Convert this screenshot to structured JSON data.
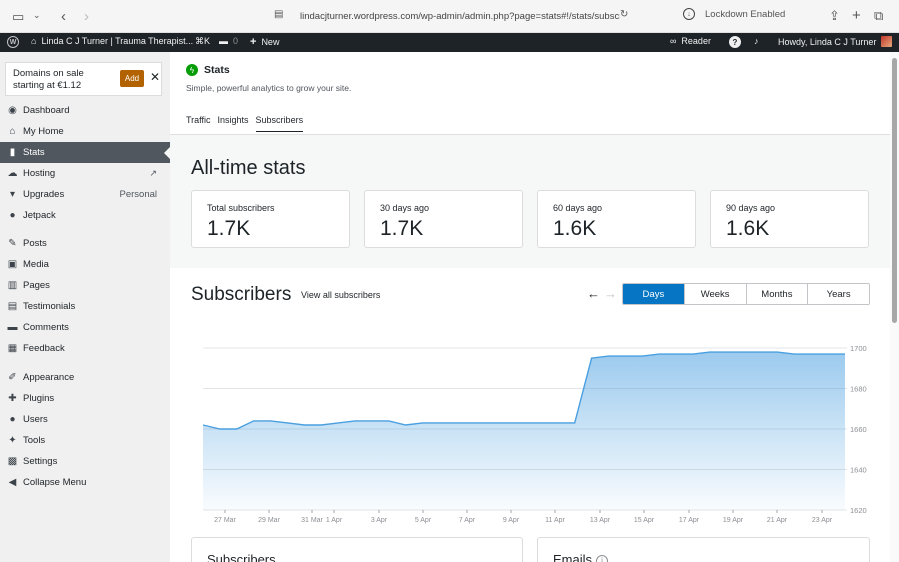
{
  "browser": {
    "url": "lindacjturner.wordpress.com/wp-admin/admin.php?page=stats#!/stats/subscribers",
    "lockdown_label": "Lockdown Enabled"
  },
  "adminbar": {
    "site_name": "Linda C J Turner | Trauma Therapist...",
    "shortcut": "⌘K",
    "comments_count": "0",
    "new_label": "New",
    "reader_label": "Reader",
    "howdy": "Howdy, Linda C J Turner"
  },
  "sidebar": {
    "promo": {
      "text": "Domains on sale starting at €1.12",
      "add_label": "Add"
    },
    "items": [
      {
        "label": "Dashboard",
        "icon": "dashboard-icon"
      },
      {
        "label": "My Home",
        "icon": "home-icon"
      },
      {
        "label": "Stats",
        "icon": "stats-icon"
      },
      {
        "label": "Hosting",
        "icon": "cloud-icon"
      },
      {
        "label": "Upgrades",
        "icon": "cart-icon",
        "badge": "Personal"
      },
      {
        "label": "Jetpack",
        "icon": "jetpack-icon"
      },
      {
        "label": "Posts",
        "icon": "pin-icon"
      },
      {
        "label": "Media",
        "icon": "media-icon"
      },
      {
        "label": "Pages",
        "icon": "pages-icon"
      },
      {
        "label": "Testimonials",
        "icon": "testimonial-icon"
      },
      {
        "label": "Comments",
        "icon": "comment-icon"
      },
      {
        "label": "Feedback",
        "icon": "feedback-icon"
      },
      {
        "label": "Appearance",
        "icon": "brush-icon"
      },
      {
        "label": "Plugins",
        "icon": "plugin-icon"
      },
      {
        "label": "Users",
        "icon": "user-icon"
      },
      {
        "label": "Tools",
        "icon": "wrench-icon"
      },
      {
        "label": "Settings",
        "icon": "settings-icon"
      },
      {
        "label": "Collapse Menu",
        "icon": "collapse-icon"
      }
    ]
  },
  "header": {
    "title": "Stats",
    "subtitle": "Simple, powerful analytics to grow your site.",
    "tabs": [
      "Traffic",
      "Insights",
      "Subscribers"
    ]
  },
  "alltime": {
    "title": "All-time stats",
    "cards": [
      {
        "label": "Total subscribers",
        "value": "1.7K"
      },
      {
        "label": "30 days ago",
        "value": "1.7K"
      },
      {
        "label": "60 days ago",
        "value": "1.6K"
      },
      {
        "label": "90 days ago",
        "value": "1.6K"
      }
    ]
  },
  "subscribers_panel": {
    "title": "Subscribers",
    "view_all": "View all subscribers",
    "periods": [
      "Days",
      "Weeks",
      "Months",
      "Years"
    ],
    "selected_period": "Days"
  },
  "chart_data": {
    "type": "area",
    "x_ticks": [
      "27 Mar",
      "29 Mar",
      "31 Mar",
      "1 Apr",
      "3 Apr",
      "5 Apr",
      "7 Apr",
      "9 Apr",
      "11 Apr",
      "13 Apr",
      "15 Apr",
      "17 Apr",
      "19 Apr",
      "21 Apr",
      "23 Apr"
    ],
    "y_ticks": [
      1620,
      1640,
      1660,
      1680,
      1700
    ],
    "ylim": [
      1620,
      1700
    ],
    "values": [
      1662,
      1660,
      1660,
      1664,
      1664,
      1663,
      1662,
      1662,
      1663,
      1664,
      1664,
      1664,
      1662,
      1663,
      1663,
      1663,
      1663,
      1663,
      1663,
      1663,
      1663,
      1663,
      1663,
      1695,
      1696,
      1696,
      1696,
      1697,
      1697,
      1697,
      1698,
      1698,
      1698,
      1698,
      1698,
      1697,
      1697,
      1697,
      1697
    ],
    "grid": true,
    "color": "#4a9fe0"
  },
  "bottom": {
    "left_title": "Subscribers",
    "right_title": "Emails"
  }
}
